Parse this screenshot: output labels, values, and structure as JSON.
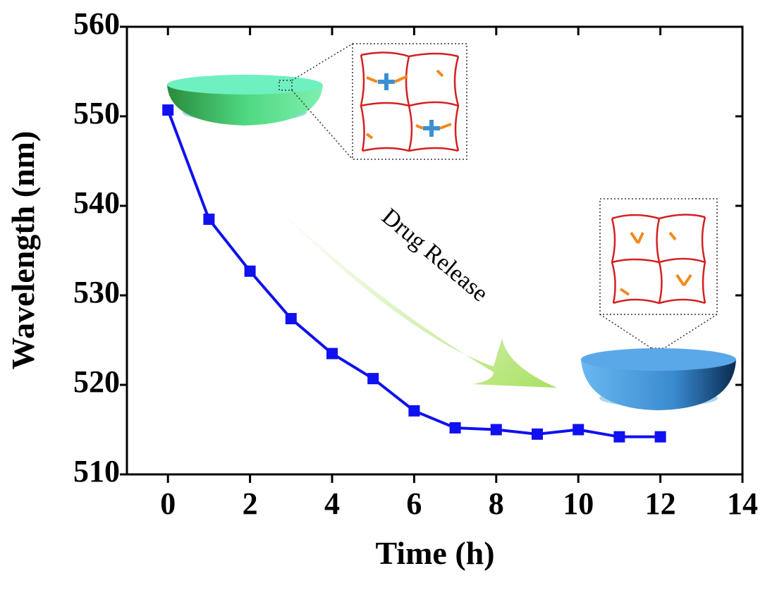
{
  "chart_data": {
    "type": "line",
    "x_label": "Time (h)",
    "y_label": "Wavelength (nm)",
    "annotation": "Drug Release",
    "x": [
      0,
      1,
      2,
      3,
      4,
      5,
      6,
      7,
      8,
      9,
      10,
      11,
      12
    ],
    "values": [
      550.7,
      538.5,
      532.7,
      527.4,
      523.5,
      520.7,
      517.1,
      515.2,
      515.0,
      514.5,
      515.0,
      514.2,
      514.2
    ],
    "color": "#1010f0",
    "xlim": [
      -1,
      14
    ],
    "xticks": [
      0,
      2,
      4,
      6,
      8,
      10,
      12,
      14
    ],
    "ylim": [
      510,
      560
    ],
    "yticks": [
      510,
      520,
      530,
      540,
      550,
      560
    ]
  }
}
